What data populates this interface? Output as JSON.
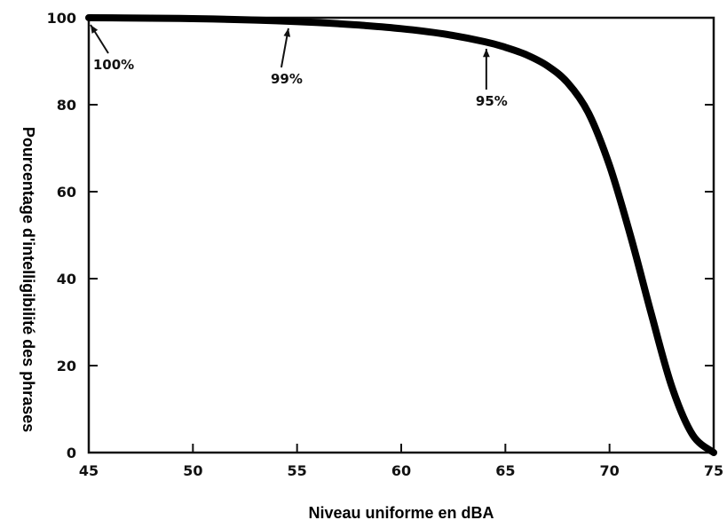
{
  "chart_data": {
    "type": "line",
    "title": "",
    "xlabel": "Niveau uniforme en dBA",
    "ylabel": "Pourcentage d'intelligibilité des phrases",
    "xlim": [
      45,
      75
    ],
    "ylim": [
      0,
      100
    ],
    "xticks": [
      "45",
      "50",
      "55",
      "60",
      "65",
      "70",
      "75"
    ],
    "yticks": [
      "0",
      "20",
      "40",
      "60",
      "80",
      "100"
    ],
    "grid": false,
    "legend": "none",
    "line_color": "#000000",
    "series": [
      {
        "x": [
          45,
          48,
          50,
          52,
          54,
          56,
          58,
          60,
          62,
          64,
          65,
          66,
          67,
          68,
          69,
          70,
          71,
          72,
          73,
          74,
          75
        ],
        "values": [
          100,
          99.9,
          99.8,
          99.6,
          99.3,
          98.9,
          98.3,
          97.5,
          96.3,
          94.5,
          93.2,
          91.5,
          89,
          85,
          78,
          66,
          50,
          32,
          15,
          4,
          0
        ]
      }
    ],
    "annotations": [
      {
        "text": "100%",
        "x": 45,
        "y": 100
      },
      {
        "text": "99%",
        "x": 54.5,
        "y": 99.2
      },
      {
        "text": "95%",
        "x": 64,
        "y": 94.5
      }
    ]
  }
}
